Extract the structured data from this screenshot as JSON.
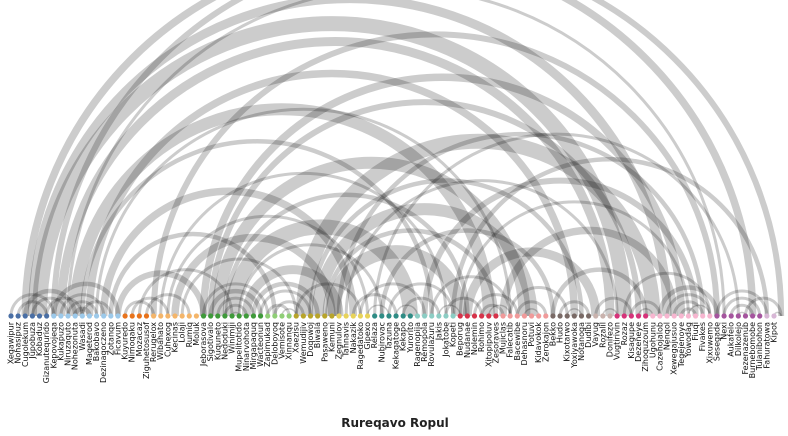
{
  "title": "Rureqavo Ropul",
  "nodes": [
    {
      "label": "Xeqawipur",
      "color": "#4a6fa5"
    },
    {
      "label": "Nohasipuz",
      "color": "#4a6fa5"
    },
    {
      "label": "Cugolekum",
      "color": "#4a6fa5"
    },
    {
      "label": "Jupobuza",
      "color": "#4a6fa5"
    },
    {
      "label": "Kobaduz",
      "color": "#4a6fa5"
    },
    {
      "label": "Gizanutequrido",
      "color": "#4a6fa5"
    },
    {
      "label": "Kepovojeqa",
      "color": "#9cc9ea"
    },
    {
      "label": "Kukapuzo",
      "color": "#9cc9ea"
    },
    {
      "label": "Niruzaquto",
      "color": "#9cc9ea"
    },
    {
      "label": "Nohezonuta",
      "color": "#9cc9ea"
    },
    {
      "label": "Wasadi",
      "color": "#9cc9ea"
    },
    {
      "label": "Mageterod",
      "color": "#9cc9ea"
    },
    {
      "label": "Bakobavo",
      "color": "#9cc9ea"
    },
    {
      "label": "Dezinaqoczeno",
      "color": "#9cc9ea"
    },
    {
      "label": "Zotanqo",
      "color": "#9cc9ea"
    },
    {
      "label": "Ficavum",
      "color": "#9cc9ea"
    },
    {
      "label": "Kuyuredo",
      "color": "#e8731c"
    },
    {
      "label": "Nimoqaku",
      "color": "#e8731c"
    },
    {
      "label": "Mozacaz",
      "color": "#e8731c"
    },
    {
      "label": "Ziguhetosusof",
      "color": "#e8731c"
    },
    {
      "label": "Rerugelox",
      "color": "#f4b56a"
    },
    {
      "label": "Wibahato",
      "color": "#f4b56a"
    },
    {
      "label": "Cuhexog",
      "color": "#f4b56a"
    },
    {
      "label": "Kecinas",
      "color": "#f4b56a"
    },
    {
      "label": "Lolaji",
      "color": "#f4b56a"
    },
    {
      "label": "Rumiq",
      "color": "#f4b56a"
    },
    {
      "label": "Moluk",
      "color": "#f4b56a"
    },
    {
      "label": "Jeborasova",
      "color": "#3f9a3a"
    },
    {
      "label": "Sigotivalo",
      "color": "#3f9a3a"
    },
    {
      "label": "Kuquneto",
      "color": "#3f9a3a"
    },
    {
      "label": "Nedoduki",
      "color": "#3f9a3a"
    },
    {
      "label": "Winimiji",
      "color": "#3f9a3a"
    },
    {
      "label": "Mupelitotido",
      "color": "#3f9a3a"
    },
    {
      "label": "Ninarvohota",
      "color": "#3f9a3a"
    },
    {
      "label": "Mirgapaquq",
      "color": "#3f9a3a"
    },
    {
      "label": "Wacteonun",
      "color": "#3f9a3a"
    },
    {
      "label": "Zapimukad",
      "color": "#8fce76"
    },
    {
      "label": "Deloboyoq",
      "color": "#8fce76"
    },
    {
      "label": "Vemisote",
      "color": "#8fce76"
    },
    {
      "label": "Xinnanqu",
      "color": "#8fce76"
    },
    {
      "label": "Xaezisu",
      "color": "#b8a42a"
    },
    {
      "label": "Wemudijiv",
      "color": "#b8a42a"
    },
    {
      "label": "Doqowoj",
      "color": "#b8a42a"
    },
    {
      "label": "Biwala",
      "color": "#b8a42a"
    },
    {
      "label": "Pasaweno",
      "color": "#b8a42a"
    },
    {
      "label": "Kemuni",
      "color": "#b8a42a"
    },
    {
      "label": "Zegnulov",
      "color": "#e8d35a"
    },
    {
      "label": "Tahnavis",
      "color": "#e8d35a"
    },
    {
      "label": "Nakazik",
      "color": "#e8d35a"
    },
    {
      "label": "Ragedatoko",
      "color": "#e8d35a"
    },
    {
      "label": "Gipexo",
      "color": "#e8d35a"
    },
    {
      "label": "Relaza",
      "color": "#2f8c85"
    },
    {
      "label": "Nubirovac",
      "color": "#2f8c85"
    },
    {
      "label": "Tazuna",
      "color": "#2f8c85"
    },
    {
      "label": "Kekaqatoge",
      "color": "#2f8c85"
    },
    {
      "label": "Kekapo",
      "color": "#2f8c85"
    },
    {
      "label": "Yurorito",
      "color": "#2f8c85"
    },
    {
      "label": "Ragenopija",
      "color": "#8ccdc4"
    },
    {
      "label": "Remopola",
      "color": "#8ccdc4"
    },
    {
      "label": "Rovulazuru",
      "color": "#8ccdc4"
    },
    {
      "label": "Jakis",
      "color": "#8ccdc4"
    },
    {
      "label": "Jokatobe",
      "color": "#8ccdc4"
    },
    {
      "label": "Kopeti",
      "color": "#8ccdc4"
    },
    {
      "label": "Beporug",
      "color": "#d6334a"
    },
    {
      "label": "Nudanae",
      "color": "#d6334a"
    },
    {
      "label": "Nolemin",
      "color": "#d6334a"
    },
    {
      "label": "Rohimo",
      "color": "#d6334a"
    },
    {
      "label": "Xitopipoluv",
      "color": "#d6334a"
    },
    {
      "label": "Zesoraves",
      "color": "#d6334a"
    },
    {
      "label": "Mujiclas",
      "color": "#f09a9a"
    },
    {
      "label": "Falecatib",
      "color": "#f09a9a"
    },
    {
      "label": "Bacewibe",
      "color": "#f09a9a"
    },
    {
      "label": "Dehasnoru",
      "color": "#f09a9a"
    },
    {
      "label": "Potuvi",
      "color": "#f09a9a"
    },
    {
      "label": "Kidavokok",
      "color": "#f09a9a"
    },
    {
      "label": "Zerokajon",
      "color": "#f09a9a"
    },
    {
      "label": "Bekko",
      "color": "#7a6a66"
    },
    {
      "label": "Hudo",
      "color": "#7a6a66"
    },
    {
      "label": "Kixotarwo",
      "color": "#7a6a66"
    },
    {
      "label": "Yoxiyawoka",
      "color": "#7a6a66"
    },
    {
      "label": "Notanoga",
      "color": "#7a6a66"
    },
    {
      "label": "Dudibi",
      "color": "#7a6a66"
    },
    {
      "label": "Vayug",
      "color": "#c9b2ad"
    },
    {
      "label": "Rozalil",
      "color": "#c9b2ad"
    },
    {
      "label": "Donifezo",
      "color": "#c9b2ad"
    },
    {
      "label": "Vugtirivin",
      "color": "#d6337a"
    },
    {
      "label": "Rozaz",
      "color": "#d6337a"
    },
    {
      "label": "Kisagupe",
      "color": "#d6337a"
    },
    {
      "label": "Dezeneye",
      "color": "#d6337a"
    },
    {
      "label": "Zihoquzoum",
      "color": "#d6337a"
    },
    {
      "label": "Ugohunu",
      "color": "#f7b6d0"
    },
    {
      "label": "Cazehojalob",
      "color": "#f7b6d0"
    },
    {
      "label": "Nenqol",
      "color": "#f7b6d0"
    },
    {
      "label": "Xewegajusuo",
      "color": "#f7b6d0"
    },
    {
      "label": "Tegejenoye",
      "color": "#f7b6d0"
    },
    {
      "label": "Yowodag",
      "color": "#f7b6d0"
    },
    {
      "label": "Fiuqi",
      "color": "#f7b6d0"
    },
    {
      "label": "Fivakes",
      "color": "#f7b6d0"
    },
    {
      "label": "Xixuwemo",
      "color": "#f7b6d0"
    },
    {
      "label": "Sesegade",
      "color": "#a5559e"
    },
    {
      "label": "Nexi",
      "color": "#a5559e"
    },
    {
      "label": "Aukafelo",
      "color": "#a5559e"
    },
    {
      "label": "Dilkolejo",
      "color": "#a5559e"
    },
    {
      "label": "Fezenazenub",
      "color": "#a5559e"
    },
    {
      "label": "Burnebomobe",
      "color": "#a5559e"
    },
    {
      "label": "Tulanibohon",
      "color": "#a5559e"
    },
    {
      "label": "Fahuratowa",
      "color": "#d8b7d6"
    },
    {
      "label": "Kipot",
      "color": "#d8b7d6"
    }
  ],
  "links": [
    [
      2,
      104,
      5
    ],
    [
      3,
      92,
      6
    ],
    [
      4,
      86,
      10
    ],
    [
      6,
      108,
      4
    ],
    [
      7,
      84,
      6
    ],
    [
      8,
      100,
      2
    ],
    [
      9,
      67,
      8
    ],
    [
      10,
      59,
      3
    ],
    [
      11,
      79,
      5
    ],
    [
      12,
      70,
      2
    ],
    [
      13,
      48,
      5
    ],
    [
      14,
      37,
      3
    ],
    [
      15,
      27,
      4
    ],
    [
      6,
      15,
      3
    ],
    [
      7,
      13,
      2
    ],
    [
      8,
      12,
      2
    ],
    [
      9,
      11,
      3
    ],
    [
      10,
      14,
      2
    ],
    [
      5,
      10,
      2
    ],
    [
      3,
      8,
      2
    ],
    [
      1,
      5,
      2
    ],
    [
      2,
      9,
      3
    ],
    [
      0,
      6,
      2
    ],
    [
      20,
      99,
      4
    ],
    [
      21,
      61,
      2
    ],
    [
      22,
      50,
      2
    ],
    [
      23,
      45,
      5
    ],
    [
      24,
      40,
      2
    ],
    [
      18,
      31,
      2
    ],
    [
      17,
      22,
      2
    ],
    [
      19,
      25,
      2
    ],
    [
      16,
      20,
      2
    ],
    [
      27,
      94,
      5
    ],
    [
      28,
      88,
      4
    ],
    [
      29,
      72,
      8
    ],
    [
      30,
      64,
      3
    ],
    [
      31,
      56,
      10
    ],
    [
      32,
      52,
      2
    ],
    [
      33,
      46,
      6
    ],
    [
      34,
      43,
      3
    ],
    [
      35,
      42,
      2
    ],
    [
      28,
      35,
      3
    ],
    [
      29,
      34,
      2
    ],
    [
      30,
      33,
      2
    ],
    [
      27,
      36,
      2
    ],
    [
      31,
      32,
      1
    ],
    [
      36,
      39,
      2
    ],
    [
      37,
      41,
      2
    ],
    [
      38,
      40,
      1
    ],
    [
      41,
      90,
      10
    ],
    [
      42,
      80,
      3
    ],
    [
      43,
      73,
      8
    ],
    [
      44,
      68,
      3
    ],
    [
      45,
      63,
      9
    ],
    [
      40,
      49,
      2
    ],
    [
      46,
      97,
      3
    ],
    [
      47,
      85,
      2
    ],
    [
      48,
      54,
      2
    ],
    [
      49,
      58,
      2
    ],
    [
      50,
      53,
      1
    ],
    [
      51,
      102,
      2
    ],
    [
      52,
      76,
      3
    ],
    [
      53,
      62,
      2
    ],
    [
      55,
      60,
      2
    ],
    [
      54,
      57,
      1
    ],
    [
      58,
      96,
      4
    ],
    [
      59,
      70,
      2
    ],
    [
      60,
      63,
      1
    ],
    [
      61,
      66,
      2
    ],
    [
      62,
      106,
      3
    ],
    [
      63,
      95,
      2
    ],
    [
      64,
      82,
      6
    ],
    [
      65,
      71,
      2
    ],
    [
      66,
      69,
      2
    ],
    [
      67,
      70,
      1
    ],
    [
      69,
      93,
      5
    ],
    [
      70,
      78,
      2
    ],
    [
      71,
      75,
      2
    ],
    [
      72,
      74,
      1
    ],
    [
      76,
      89,
      3
    ],
    [
      77,
      81,
      2
    ],
    [
      78,
      80,
      1
    ],
    [
      82,
      87,
      2
    ],
    [
      83,
      85,
      1
    ],
    [
      86,
      98,
      2
    ],
    [
      87,
      91,
      2
    ],
    [
      88,
      90,
      1
    ],
    [
      91,
      99,
      3
    ],
    [
      92,
      98,
      2
    ],
    [
      93,
      97,
      2
    ],
    [
      94,
      96,
      2
    ],
    [
      95,
      98,
      1
    ],
    [
      99,
      106,
      2
    ],
    [
      100,
      105,
      2
    ],
    [
      101,
      104,
      2
    ],
    [
      102,
      103,
      1
    ],
    [
      103,
      108,
      2
    ],
    [
      107,
      108,
      1
    ]
  ]
}
